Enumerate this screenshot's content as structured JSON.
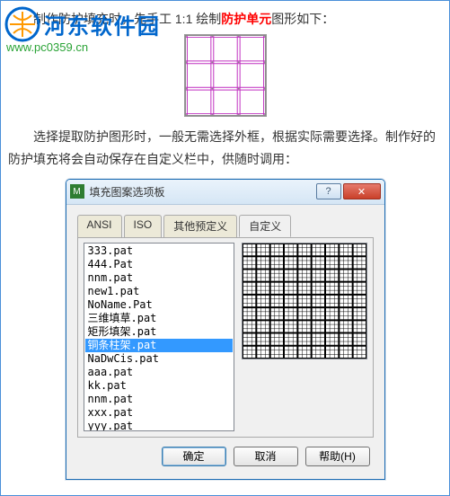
{
  "watermark": {
    "brand": "河东软件园",
    "url": "www.pc0359.cn",
    "colors": {
      "brand": "#0066cc",
      "url": "#2aa336"
    }
  },
  "paragraphs": {
    "p1_pre": "制作防护填充时，先手工 1:1 绘制",
    "p1_hl": "防护单元",
    "p1_post": "图形如下：",
    "p2": "选择提取防护图形时，一般无需选择外框，根据实际需要选择。制作好的防护填充将会自动保存在自定义栏中，供随时调用："
  },
  "grid_figure": {
    "width": 92,
    "height": 92,
    "stroke": "#c030c0",
    "bg": "#ffffff",
    "cell_lines": [
      0,
      30,
      60,
      90
    ],
    "gap": 3
  },
  "dialog": {
    "title": "填充图案选项板",
    "icon_text": "M",
    "win_help": "?",
    "win_close": "✕",
    "tabs": [
      "ANSI",
      "ISO",
      "其他预定义",
      "自定义"
    ],
    "active_tab": 3,
    "list": [
      "333.pat",
      "444.Pat",
      "nnm.pat",
      "new1.pat",
      "NoName.Pat",
      "三维填草.pat",
      "矩形填架.pat",
      "铜条柱架.pat",
      "NaDwCis.pat",
      "aaa.pat",
      "kk.pat",
      "nnm.pat",
      "xxx.pat",
      "yyy.pat"
    ],
    "selected_index": 7,
    "preview": {
      "type": "dense-grid",
      "bg": "#ffffff",
      "stroke": "#000000",
      "major": 9,
      "minor_per": 3
    },
    "buttons": {
      "ok": "确定",
      "cancel": "取消",
      "help": "帮助(H)"
    }
  }
}
